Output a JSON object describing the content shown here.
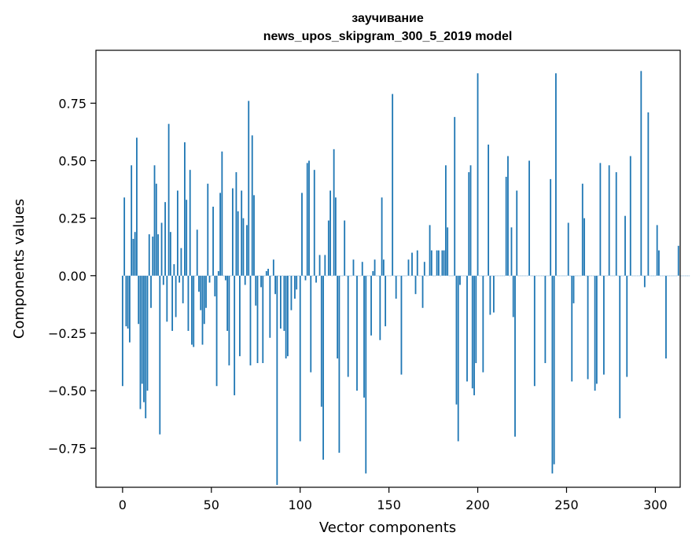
{
  "chart_data": {
    "type": "bar",
    "title": "заучивание",
    "subtitle": "news_upos_skipgram_300_5_2019 model",
    "xlabel": "Vector components",
    "ylabel": "Components values",
    "xlim": [
      -15,
      314
    ],
    "ylim": [
      -0.92,
      0.98
    ],
    "x_ticks": [
      0,
      50,
      100,
      150,
      200,
      250,
      300
    ],
    "x_tick_labels": [
      "0",
      "50",
      "100",
      "150",
      "200",
      "250",
      "300"
    ],
    "y_ticks": [
      -0.75,
      -0.5,
      -0.25,
      0.0,
      0.25,
      0.5,
      0.75
    ],
    "y_tick_labels": [
      "−0.75",
      "−0.50",
      "−0.25",
      "0.00",
      "0.25",
      "0.50",
      "0.75"
    ],
    "bar_color": "#1f77b4",
    "grid": false,
    "values": [
      -0.48,
      0.34,
      -0.22,
      -0.23,
      -0.29,
      0.48,
      0.16,
      0.19,
      0.6,
      -0.21,
      -0.58,
      -0.47,
      -0.55,
      -0.62,
      -0.5,
      0.18,
      -0.14,
      0.17,
      0.48,
      0.4,
      0.18,
      -0.69,
      0.23,
      -0.04,
      0.32,
      -0.2,
      0.66,
      0.19,
      -0.24,
      0.05,
      -0.18,
      0.37,
      -0.03,
      0.12,
      -0.12,
      0.58,
      0.33,
      -0.24,
      0.46,
      -0.3,
      -0.31,
      0.0,
      0.2,
      -0.07,
      -0.15,
      -0.3,
      -0.21,
      -0.14,
      0.4,
      -0.03,
      0.0,
      0.3,
      -0.09,
      -0.48,
      0.02,
      0.36,
      0.54,
      0.0,
      -0.02,
      -0.24,
      -0.39,
      0.0,
      0.38,
      -0.52,
      0.45,
      0.28,
      -0.35,
      0.37,
      0.25,
      -0.04,
      0.22,
      0.76,
      -0.39,
      0.61,
      0.35,
      -0.13,
      -0.38,
      0.0,
      -0.05,
      -0.38,
      0.0,
      0.02,
      0.03,
      -0.27,
      0.0,
      0.07,
      -0.08,
      -0.91,
      0.0,
      -0.23,
      0.0,
      -0.24,
      -0.36,
      -0.35,
      0.0,
      -0.15,
      0.0,
      -0.1,
      -0.06,
      0.0,
      -0.72,
      0.36,
      0.0,
      -0.02,
      0.49,
      0.5,
      -0.42,
      0.0,
      0.46,
      -0.03,
      0.0,
      0.09,
      -0.57,
      -0.8,
      0.09,
      0.0,
      0.24,
      0.37,
      0.0,
      0.55,
      0.34,
      -0.36,
      -0.77,
      0.0,
      0.0,
      0.24,
      0.0,
      -0.44,
      0.0,
      0.0,
      0.07,
      0.0,
      -0.5,
      0.0,
      0.0,
      0.06,
      -0.53,
      -0.86,
      0.0,
      0.0,
      -0.26,
      0.02,
      0.07,
      0.0,
      0.0,
      -0.28,
      0.34,
      0.07,
      -0.22,
      0.0,
      0.0,
      0.0,
      0.79,
      0.0,
      -0.1,
      0.0,
      0.0,
      -0.43,
      0.0,
      0.0,
      0.0,
      0.07,
      0.0,
      0.1,
      0.0,
      -0.08,
      0.11,
      0.0,
      0.0,
      -0.14,
      0.06,
      0.0,
      0.0,
      0.22,
      0.11,
      0.0,
      0.0,
      0.11,
      0.11,
      0.0,
      0.11,
      0.11,
      0.48,
      0.21,
      0.0,
      0.0,
      0.0,
      0.69,
      -0.56,
      -0.72,
      -0.04,
      0.0,
      0.0,
      0.0,
      -0.46,
      0.45,
      0.48,
      -0.49,
      -0.52,
      -0.38,
      0.88,
      0.0,
      0.0,
      -0.42,
      0.0,
      0.0,
      0.57,
      -0.17,
      0.0,
      -0.16,
      0.0,
      0.0,
      0.0,
      0.0,
      0.0,
      0.0,
      0.43,
      0.52,
      0.0,
      0.21,
      -0.18,
      -0.7,
      0.37,
      0.0,
      0.0,
      0.0,
      0.0,
      0.0,
      0.0,
      0.5,
      0.0,
      0.0,
      -0.48,
      0.0,
      0.0,
      0.0,
      0.0,
      0.0,
      -0.38,
      0.0,
      0.0,
      0.42,
      -0.86,
      -0.82,
      0.88,
      0.0,
      0.0,
      0.0,
      0.0,
      0.0,
      0.0,
      0.23,
      0.0,
      -0.46,
      -0.12,
      0.0,
      0.0,
      0.0,
      0.0,
      0.4,
      0.25,
      0.0,
      -0.45,
      0.0,
      0.0,
      0.0,
      -0.5,
      -0.47,
      0.0,
      0.49,
      0.0,
      -0.43,
      0.0,
      0.0,
      0.48,
      0.0,
      0.0,
      0.0,
      0.45,
      0.0,
      -0.62,
      0.0,
      0.0,
      0.26,
      -0.44,
      0.0,
      0.52,
      0.0,
      0.0,
      0.0,
      0.0,
      0.0,
      0.89,
      0.0,
      -0.05,
      0.0,
      0.71,
      0.0,
      0.0,
      0.0,
      0.0,
      0.22,
      0.11,
      0.0,
      0.0,
      0.0,
      -0.36,
      0.0,
      0.0,
      0.0,
      0.0,
      0.0,
      0.0,
      0.13,
      0.0,
      0.0,
      0.0,
      0.0,
      0.0,
      0.0
    ]
  }
}
